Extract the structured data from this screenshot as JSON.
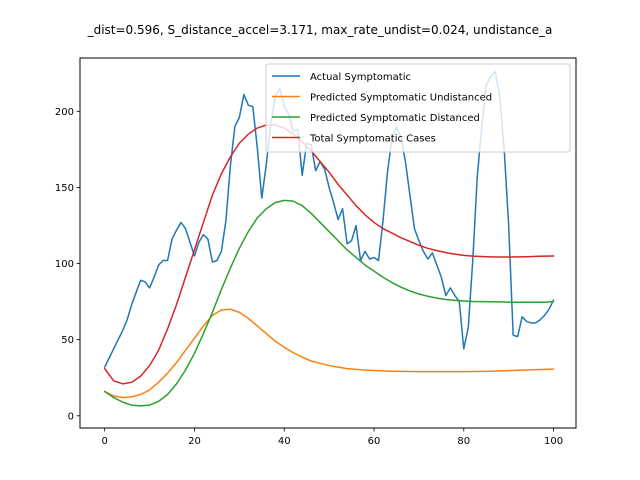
{
  "chart_data": {
    "type": "line",
    "title": "_dist=0.596, S_distance_accel=3.171, max_rate_undist=0.024, undistance_a",
    "xlabel": "",
    "ylabel": "",
    "xlim": [
      -5.5,
      105
    ],
    "ylim": [
      -8,
      235
    ],
    "xticks": [
      0,
      20,
      40,
      60,
      80,
      100
    ],
    "yticks": [
      0,
      50,
      100,
      150,
      200
    ],
    "grid": false,
    "legend_position": "top-right",
    "series": [
      {
        "name": "Actual Symptomatic",
        "color": "#1f77b4",
        "x": [
          0,
          1,
          2,
          3,
          4,
          5,
          6,
          7,
          8,
          9,
          10,
          11,
          12,
          13,
          14,
          15,
          16,
          17,
          18,
          19,
          20,
          21,
          22,
          23,
          24,
          25,
          26,
          27,
          28,
          29,
          30,
          31,
          32,
          33,
          34,
          35,
          36,
          37,
          38,
          39,
          40,
          41,
          42,
          43,
          44,
          45,
          46,
          47,
          48,
          49,
          50,
          51,
          52,
          53,
          54,
          55,
          56,
          57,
          58,
          59,
          60,
          61,
          62,
          63,
          64,
          65,
          66,
          67,
          68,
          69,
          70,
          71,
          72,
          73,
          74,
          75,
          76,
          77,
          78,
          79,
          80,
          81,
          82,
          83,
          84,
          85,
          86,
          87,
          88,
          89,
          90,
          91,
          92,
          93,
          94,
          95,
          96,
          97,
          98,
          99,
          100
        ],
        "y": [
          32,
          38,
          44,
          50,
          56,
          63,
          73,
          81,
          89,
          88,
          84,
          91,
          99,
          102,
          102,
          116,
          122,
          127,
          123,
          114,
          105,
          114,
          119,
          116,
          101,
          102,
          108,
          128,
          164,
          190,
          196,
          211,
          204,
          203,
          176,
          143,
          165,
          192,
          210,
          215,
          203,
          198,
          187,
          188,
          158,
          179,
          178,
          161,
          167,
          162,
          150,
          140,
          129,
          136,
          113,
          115,
          125,
          102,
          108,
          103,
          104,
          102,
          128,
          160,
          182,
          190,
          183,
          167,
          145,
          123,
          115,
          108,
          103,
          107,
          99,
          91,
          79,
          84,
          79,
          75,
          44,
          58,
          102,
          157,
          190,
          217,
          223,
          226,
          210,
          175,
          125,
          53,
          52,
          65,
          62,
          61,
          61,
          63,
          66,
          70,
          76
        ]
      },
      {
        "name": "Predicted Symptomatic Undistanced",
        "color": "#ff7f0e",
        "x": [
          0,
          2,
          4,
          6,
          8,
          10,
          12,
          14,
          16,
          18,
          20,
          22,
          24,
          26,
          28,
          30,
          32,
          34,
          36,
          38,
          40,
          42,
          44,
          46,
          48,
          50,
          52,
          54,
          56,
          58,
          60,
          62,
          64,
          66,
          68,
          70,
          72,
          74,
          76,
          78,
          80,
          82,
          84,
          86,
          88,
          90,
          92,
          94,
          96,
          98,
          100
        ],
        "y": [
          16,
          13,
          12,
          12.5,
          14,
          17,
          22,
          28,
          35,
          43,
          51,
          59,
          66,
          69.5,
          70,
          68,
          64,
          59,
          54,
          49,
          45,
          41.5,
          38.5,
          36,
          34.5,
          33,
          32,
          31,
          30.5,
          30,
          29.8,
          29.5,
          29.3,
          29.2,
          29.1,
          29,
          29,
          29,
          29,
          29,
          29,
          29.1,
          29.2,
          29.3,
          29.5,
          29.7,
          29.9,
          30.1,
          30.3,
          30.5,
          30.7
        ]
      },
      {
        "name": "Predicted Symptomatic Distanced",
        "color": "#2ca02c",
        "x": [
          0,
          2,
          4,
          6,
          8,
          10,
          12,
          14,
          16,
          18,
          20,
          22,
          24,
          26,
          28,
          30,
          32,
          34,
          36,
          38,
          40,
          42,
          44,
          46,
          48,
          50,
          52,
          54,
          56,
          58,
          60,
          62,
          64,
          66,
          68,
          70,
          72,
          74,
          76,
          78,
          80,
          82,
          84,
          86,
          88,
          90,
          92,
          94,
          96,
          98,
          100
        ],
        "y": [
          16,
          12,
          9,
          7,
          6.5,
          7,
          9.5,
          14,
          21,
          30,
          41,
          54,
          68,
          83,
          97,
          110,
          121,
          130,
          136,
          140,
          141.5,
          141,
          138,
          133,
          127,
          121,
          115,
          109,
          104,
          99,
          95,
          91,
          87.5,
          84.5,
          82,
          80,
          78.5,
          77.3,
          76.4,
          75.8,
          75.4,
          75.1,
          75,
          74.9,
          74.8,
          74.7,
          74.6,
          74.6,
          74.6,
          74.6,
          75
        ]
      },
      {
        "name": "Total Symptomatic Cases",
        "color": "#d62728",
        "x": [
          0,
          2,
          4,
          6,
          8,
          10,
          12,
          14,
          16,
          18,
          20,
          22,
          24,
          26,
          28,
          30,
          32,
          34,
          36,
          38,
          40,
          42,
          44,
          46,
          48,
          50,
          52,
          54,
          56,
          58,
          60,
          62,
          64,
          66,
          68,
          70,
          72,
          74,
          76,
          78,
          80,
          82,
          84,
          86,
          88,
          90,
          92,
          94,
          96,
          98,
          100
        ],
        "y": [
          31,
          23,
          21,
          22,
          26,
          33,
          43,
          57,
          73,
          91,
          109,
          127,
          145,
          159,
          170,
          179,
          185,
          189,
          191,
          191,
          189,
          185,
          180,
          174,
          167,
          160,
          152,
          145,
          138,
          132,
          127,
          123,
          120,
          117,
          114.5,
          112,
          110,
          108.5,
          107.2,
          106.2,
          105.4,
          104.9,
          104.6,
          104.4,
          104.3,
          104.3,
          104.4,
          104.5,
          104.7,
          104.9,
          105
        ]
      }
    ]
  }
}
